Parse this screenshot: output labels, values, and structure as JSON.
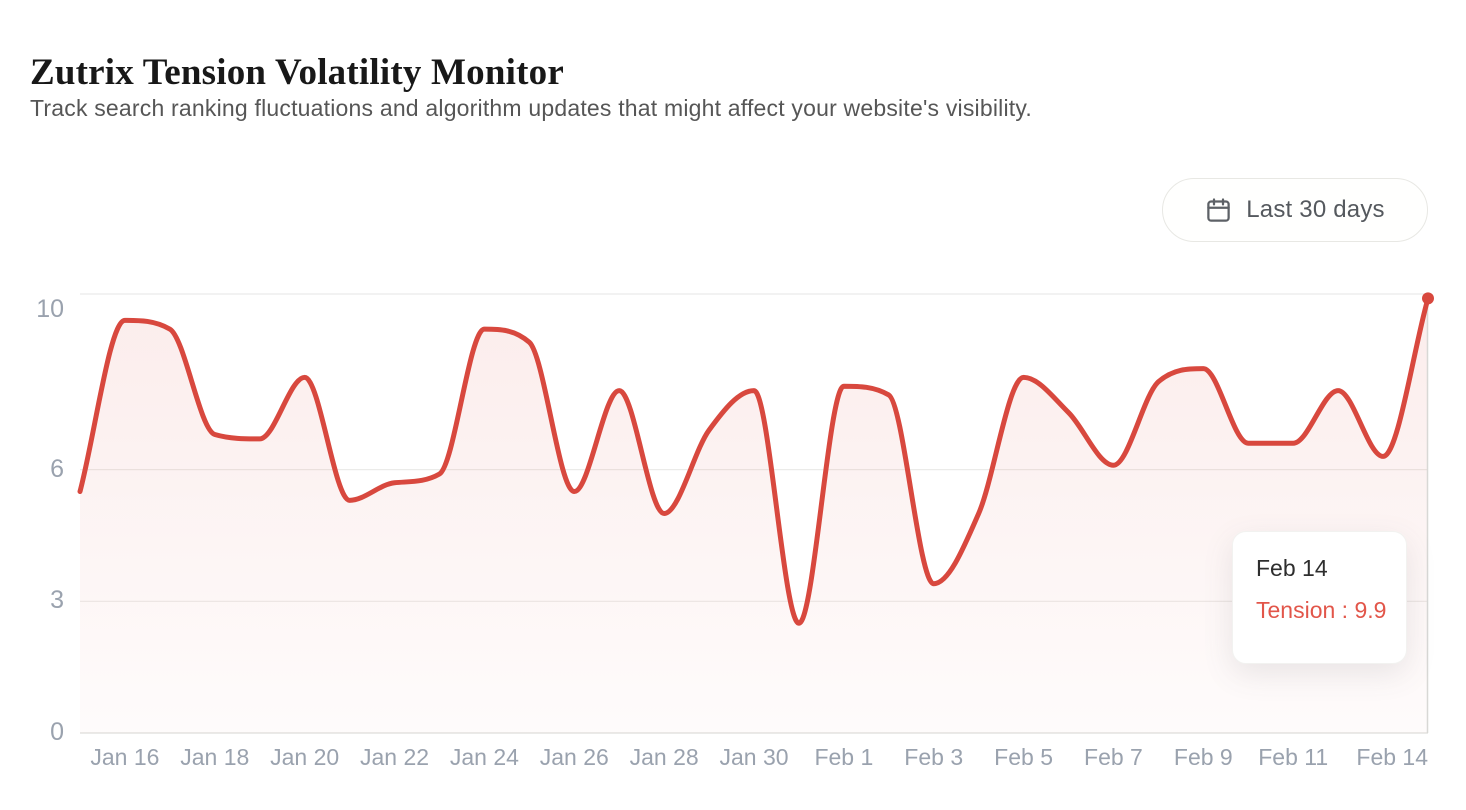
{
  "page": {
    "title": "Zutrix Tension Volatility Monitor",
    "subtitle": "Track search ranking fluctuations and algorithm updates that might affect your website's visibility."
  },
  "controls": {
    "date_range_label": "Last 30 days",
    "calendar_icon": "calendar-icon"
  },
  "tooltip": {
    "date": "Feb 14",
    "series": "Tension",
    "value": "9.9",
    "label": "Tension : 9.9"
  },
  "chart_data": {
    "type": "area",
    "title": "Zutrix Tension Volatility Monitor",
    "series": [
      {
        "name": "Tension",
        "color": "#d8483e",
        "values": [
          5.5,
          9.4,
          9.2,
          6.8,
          6.7,
          8.1,
          5.3,
          5.7,
          5.9,
          9.2,
          8.9,
          5.5,
          7.8,
          5.0,
          6.9,
          7.8,
          2.5,
          7.9,
          7.7,
          3.4,
          5.0,
          8.1,
          7.3,
          6.1,
          8.0,
          8.3,
          6.6,
          6.6,
          7.8,
          6.3,
          9.9
        ]
      }
    ],
    "x": [
      "Jan 15",
      "Jan 16",
      "Jan 17",
      "Jan 18",
      "Jan 19",
      "Jan 20",
      "Jan 21",
      "Jan 22",
      "Jan 23",
      "Jan 24",
      "Jan 25",
      "Jan 26",
      "Jan 27",
      "Jan 28",
      "Jan 29",
      "Jan 30",
      "Jan 31",
      "Feb 1",
      "Feb 2",
      "Feb 3",
      "Feb 4",
      "Feb 5",
      "Feb 6",
      "Feb 7",
      "Feb 8",
      "Feb 9",
      "Feb 10",
      "Feb 11",
      "Feb 12",
      "Feb 13",
      "Feb 14"
    ],
    "x_tick_labels": [
      "Jan 16",
      "Jan 18",
      "Jan 20",
      "Jan 22",
      "Jan 24",
      "Jan 26",
      "Jan 28",
      "Jan 30",
      "Feb 1",
      "Feb 3",
      "Feb 5",
      "Feb 7",
      "Feb 9",
      "Feb 11",
      "Feb 14"
    ],
    "x_tick_indices": [
      1,
      3,
      5,
      7,
      9,
      11,
      13,
      15,
      17,
      19,
      21,
      23,
      25,
      27,
      30
    ],
    "y_ticks": [
      10,
      6,
      3,
      0
    ],
    "ylim": [
      0,
      10
    ],
    "grid": "horizontal",
    "legend": false,
    "interpolation": "monotone",
    "highlighted_point": {
      "x": "Feb 14",
      "value": 9.9
    }
  },
  "colors": {
    "line": "#d8483e",
    "area_top": "rgba(216,72,62,0.10)",
    "area_bottom": "rgba(216,72,62,0.02)",
    "grid": "#ebebe9",
    "axis_line": "#e4e4e1",
    "cursor": "#d8d8d5",
    "tick_text": "#9aa2ae",
    "tooltip_value": "#e2564a"
  }
}
